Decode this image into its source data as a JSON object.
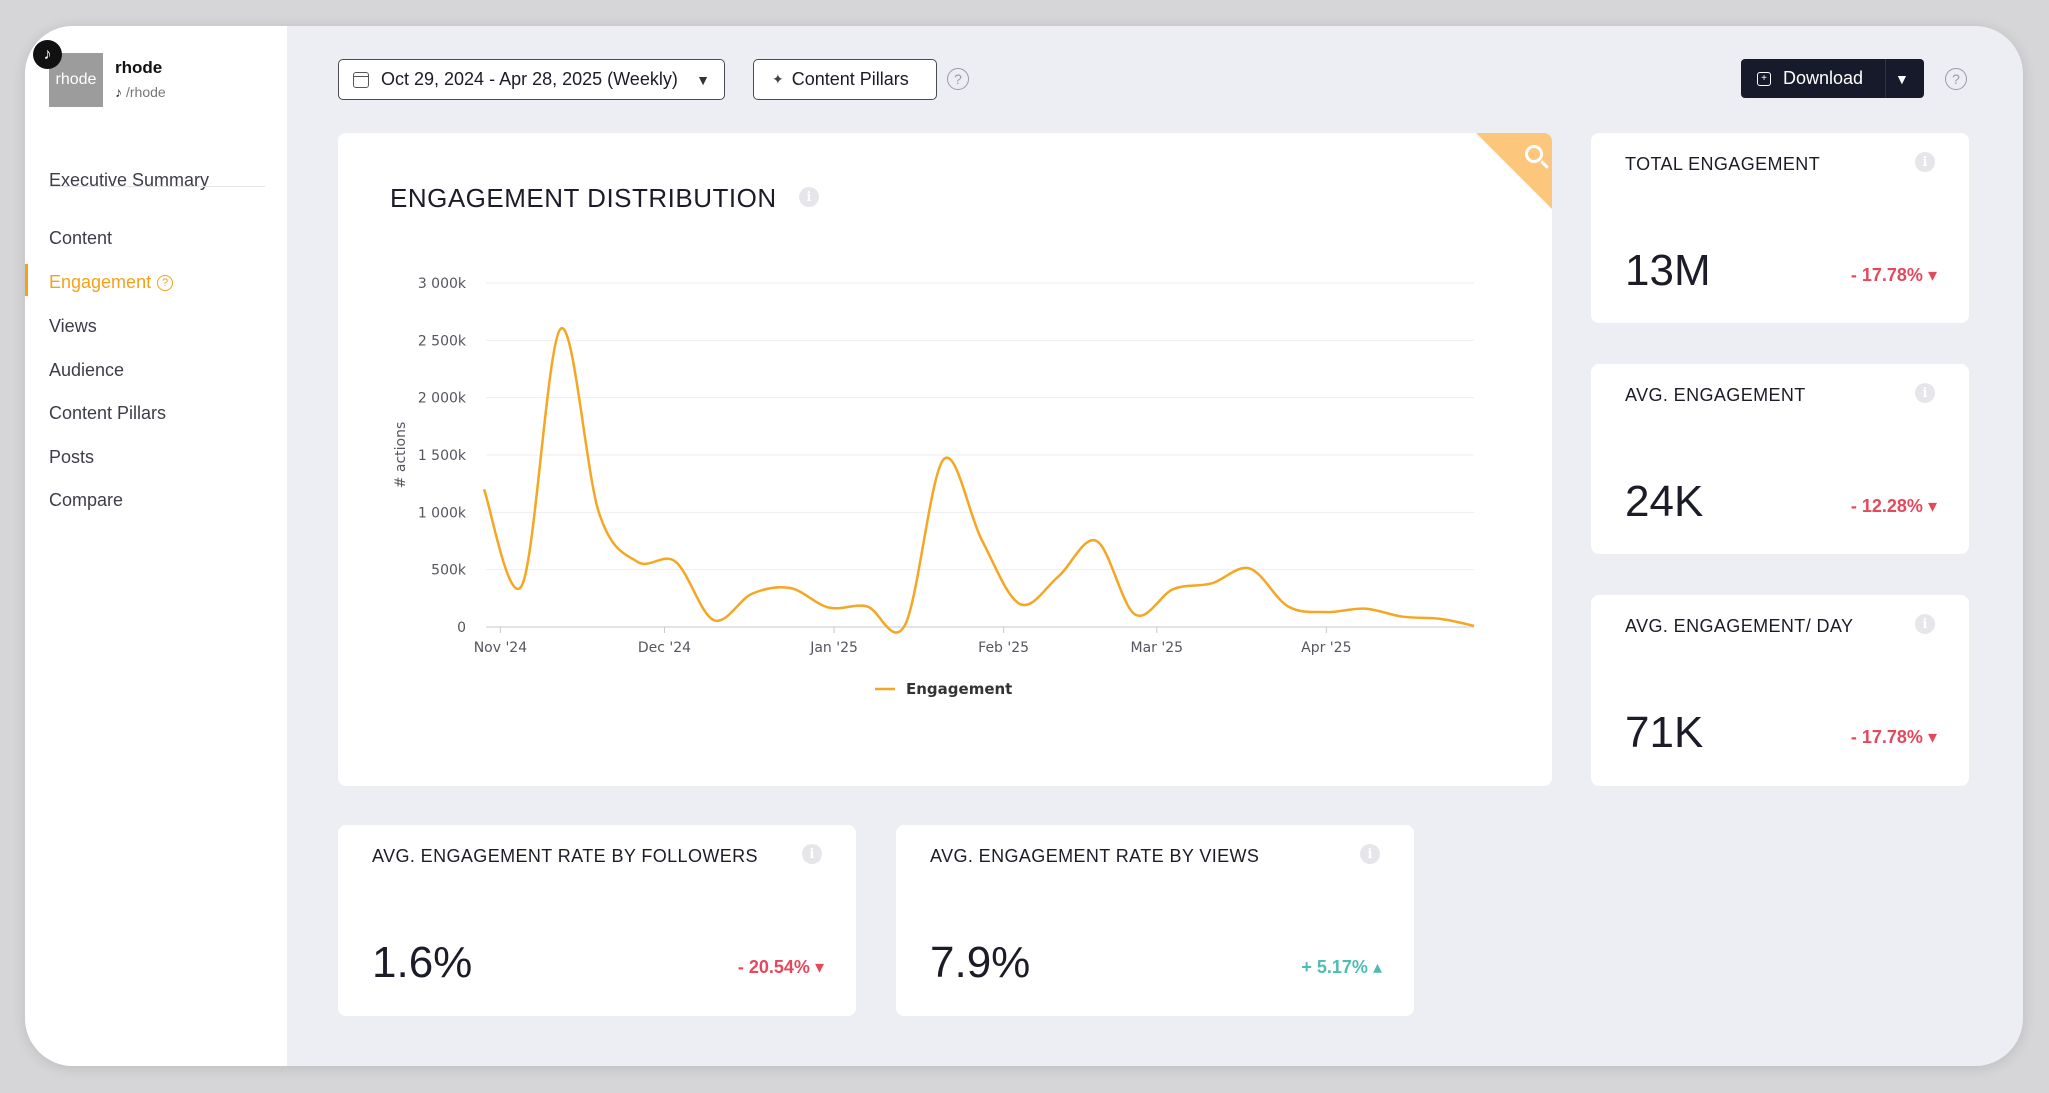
{
  "brand": {
    "logo_text": "rhode",
    "name": "rhode",
    "handle": "/rhode",
    "platform_icon": "tiktok-icon"
  },
  "nav": {
    "items": [
      {
        "label": "Executive Summary",
        "active": false
      },
      {
        "label": "Content",
        "active": false
      },
      {
        "label": "Engagement",
        "active": true
      },
      {
        "label": "Views",
        "active": false
      },
      {
        "label": "Audience",
        "active": false
      },
      {
        "label": "Content Pillars",
        "active": false
      },
      {
        "label": "Posts",
        "active": false
      },
      {
        "label": "Compare",
        "active": false
      }
    ]
  },
  "toolbar": {
    "date_range": "Oct 29, 2024 - Apr 28, 2025 (Weekly)",
    "pillars_label": "Content Pillars",
    "download_label": "Download"
  },
  "colors": {
    "accent": "#f4a01b",
    "negative": "#e5485b",
    "positive": "#4fbcb4",
    "dark": "#171a2b"
  },
  "chart_card": {
    "title": "ENGAGEMENT DISTRIBUTION"
  },
  "chart_data": {
    "type": "line",
    "ylabel": "# actions",
    "xlabel": "",
    "ylim": [
      0,
      3000000
    ],
    "y_ticks": [
      {
        "value": 0,
        "label": "0"
      },
      {
        "value": 500000,
        "label": "500k"
      },
      {
        "value": 1000000,
        "label": "1 000k"
      },
      {
        "value": 1500000,
        "label": "1 500k"
      },
      {
        "value": 2000000,
        "label": "2 000k"
      },
      {
        "value": 2500000,
        "label": "2 500k"
      },
      {
        "value": 3000000,
        "label": "3 000k"
      }
    ],
    "x_range": [
      "2024-10-29",
      "2025-04-28"
    ],
    "x_ticks": [
      {
        "date": "2024-11-01",
        "label": "Nov '24"
      },
      {
        "date": "2024-12-01",
        "label": "Dec '24"
      },
      {
        "date": "2025-01-01",
        "label": "Jan '25"
      },
      {
        "date": "2025-02-01",
        "label": "Feb '25"
      },
      {
        "date": "2025-03-01",
        "label": "Mar '25"
      },
      {
        "date": "2025-04-01",
        "label": "Apr '25"
      }
    ],
    "grid": true,
    "legend_position": "bottom",
    "series": [
      {
        "name": "Engagement",
        "color": "#f5a623",
        "points": [
          {
            "x": "2024-10-29",
            "y": 1200000
          },
          {
            "x": "2024-11-05",
            "y": 370000
          },
          {
            "x": "2024-11-12",
            "y": 2600000
          },
          {
            "x": "2024-11-19",
            "y": 1000000
          },
          {
            "x": "2024-11-26",
            "y": 570000
          },
          {
            "x": "2024-12-03",
            "y": 570000
          },
          {
            "x": "2024-12-10",
            "y": 60000
          },
          {
            "x": "2024-12-17",
            "y": 290000
          },
          {
            "x": "2024-12-24",
            "y": 340000
          },
          {
            "x": "2024-12-31",
            "y": 170000
          },
          {
            "x": "2025-01-07",
            "y": 180000
          },
          {
            "x": "2025-01-14",
            "y": 20000
          },
          {
            "x": "2025-01-21",
            "y": 1460000
          },
          {
            "x": "2025-01-28",
            "y": 760000
          },
          {
            "x": "2025-02-04",
            "y": 200000
          },
          {
            "x": "2025-02-11",
            "y": 440000
          },
          {
            "x": "2025-02-18",
            "y": 750000
          },
          {
            "x": "2025-02-25",
            "y": 110000
          },
          {
            "x": "2025-03-04",
            "y": 330000
          },
          {
            "x": "2025-03-11",
            "y": 380000
          },
          {
            "x": "2025-03-18",
            "y": 510000
          },
          {
            "x": "2025-03-25",
            "y": 180000
          },
          {
            "x": "2025-04-01",
            "y": 130000
          },
          {
            "x": "2025-04-08",
            "y": 160000
          },
          {
            "x": "2025-04-15",
            "y": 90000
          },
          {
            "x": "2025-04-22",
            "y": 70000
          },
          {
            "x": "2025-04-28",
            "y": 10000
          }
        ]
      }
    ]
  },
  "kpis": {
    "total": {
      "title": "TOTAL ENGAGEMENT",
      "value": "13M",
      "change": "- 17.78%",
      "direction": "down"
    },
    "avg": {
      "title": "AVG. ENGAGEMENT",
      "value": "24K",
      "change": "- 12.28%",
      "direction": "down"
    },
    "avg_day": {
      "title": "AVG. ENGAGEMENT/ DAY",
      "value": "71K",
      "change": "- 17.78%",
      "direction": "down"
    },
    "rate_followers": {
      "title": "AVG. ENGAGEMENT RATE BY FOLLOWERS",
      "value": "1.6%",
      "change": "- 20.54%",
      "direction": "down"
    },
    "rate_views": {
      "title": "AVG. ENGAGEMENT RATE BY VIEWS",
      "value": "7.9%",
      "change": "+ 5.17%",
      "direction": "up"
    }
  }
}
